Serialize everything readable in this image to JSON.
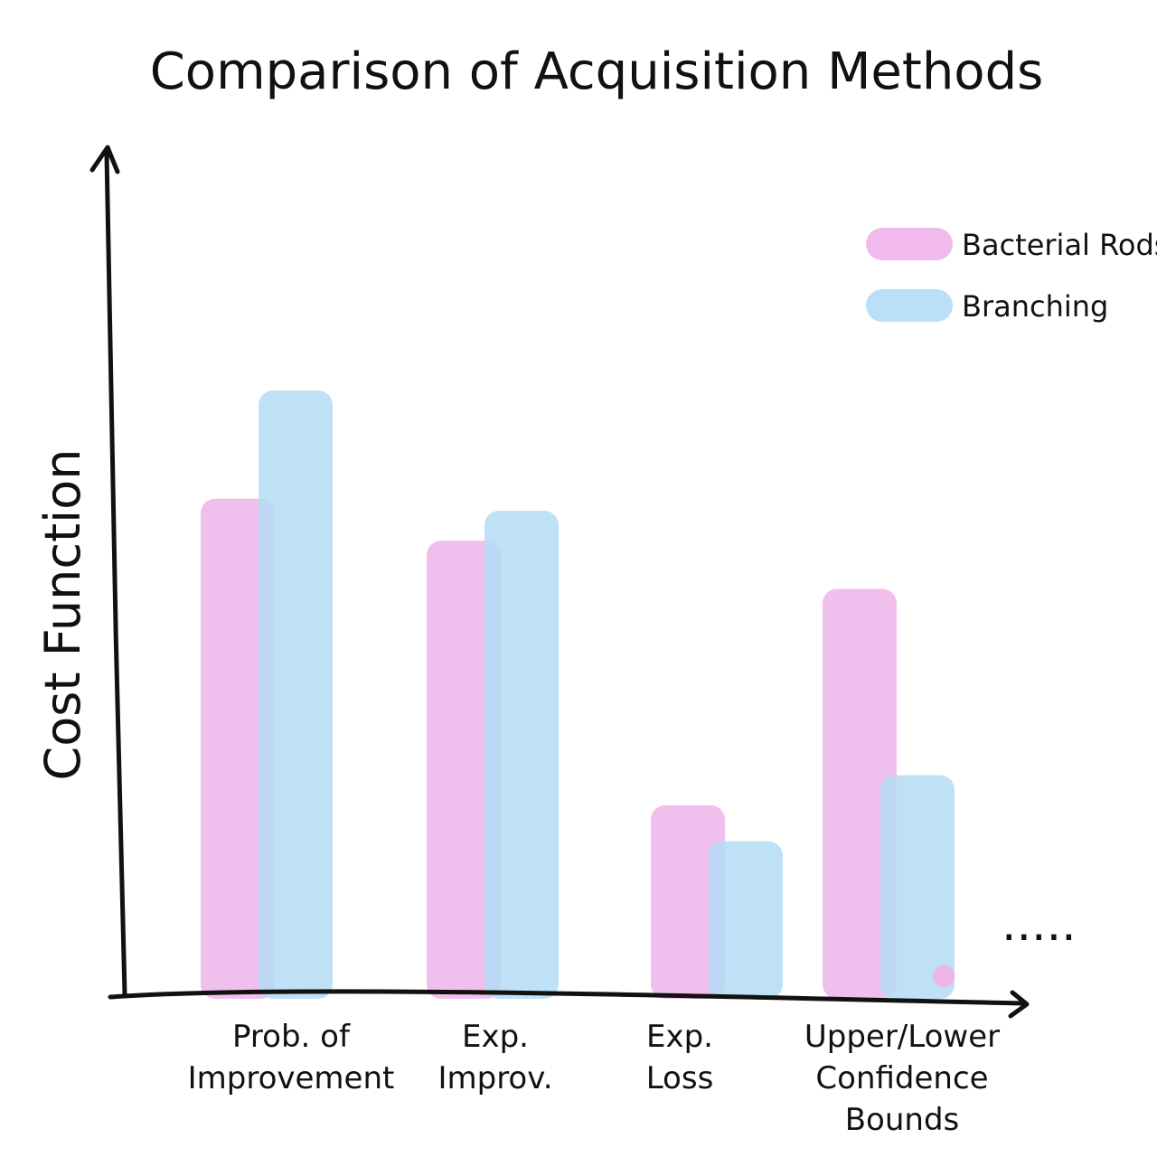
{
  "chart_data": {
    "type": "bar",
    "title": "Comparison of Acquisition Methods",
    "ylabel": "Cost Function",
    "xlabel": "",
    "categories": [
      [
        "Prob. of",
        "Improvement"
      ],
      [
        "Exp.",
        "Improv."
      ],
      [
        "Exp.",
        "Loss"
      ],
      [
        "Upper/Lower",
        "Confidence",
        "Bounds"
      ]
    ],
    "series": [
      {
        "name": "Bacterial Rods",
        "color": "#eeb4ea",
        "values": [
          0.82,
          0.75,
          0.31,
          0.67
        ]
      },
      {
        "name": "Branching",
        "color": "#b3dcf5",
        "values": [
          1.0,
          0.8,
          0.25,
          0.36
        ]
      }
    ],
    "ylim": [
      0,
      1.0
    ],
    "ticks": "none",
    "grid": false,
    "legend": "top-right",
    "trailing_mark": "....."
  }
}
